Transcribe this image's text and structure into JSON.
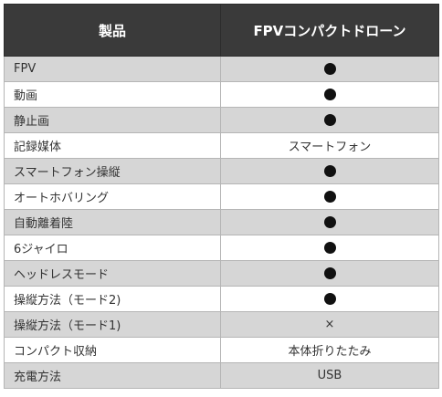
{
  "table": {
    "header": {
      "col1": "製品",
      "col2": "FPVコンパクトドローン"
    },
    "rows": [
      {
        "feature": "FPV",
        "value": "",
        "value_icon": "filled-circle"
      },
      {
        "feature": "動画",
        "value": "",
        "value_icon": "filled-circle"
      },
      {
        "feature": "静止画",
        "value": "",
        "value_icon": "filled-circle"
      },
      {
        "feature": "記録媒体",
        "value": "スマートフォン",
        "value_icon": ""
      },
      {
        "feature": "スマートフォン操縦",
        "value": "",
        "value_icon": "filled-circle"
      },
      {
        "feature": "オートホバリング",
        "value": "",
        "value_icon": "filled-circle"
      },
      {
        "feature": "自動離着陸",
        "value": "",
        "value_icon": "filled-circle"
      },
      {
        "feature": "6ジャイロ",
        "value": "",
        "value_icon": "filled-circle"
      },
      {
        "feature": "ヘッドレスモード",
        "value": "",
        "value_icon": "filled-circle"
      },
      {
        "feature": "操縦方法（モード2)",
        "value": "",
        "value_icon": "filled-circle"
      },
      {
        "feature": "操縦方法（モード1)",
        "value": "×",
        "value_icon": ""
      },
      {
        "feature": "コンパクト収納",
        "value": "本体折りたたみ",
        "value_icon": ""
      },
      {
        "feature": "充電方法",
        "value": "USB",
        "value_icon": ""
      }
    ]
  },
  "colors": {
    "header_bg": "#3a3a3a",
    "shaded_row_bg": "#d6d6d6",
    "plain_row_bg": "#ffffff"
  }
}
